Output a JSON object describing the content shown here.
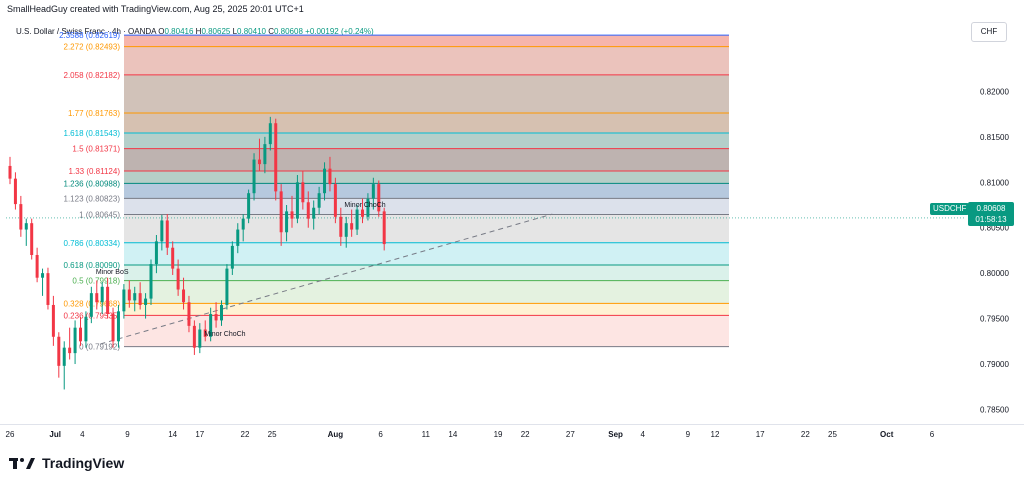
{
  "header": {
    "attribution": "SmallHeadGuy created with TradingView.com, Aug 25, 2025 20:01 UTC+1",
    "symbol_title": "U.S. Dollar / Swiss Franc · 4h · OANDA",
    "ohlc": {
      "o_label": "O",
      "o": "0.80416",
      "h_label": "H",
      "h": "0.80625",
      "l_label": "L",
      "l": "0.80410",
      "c_label": "C",
      "c": "0.80608",
      "change": "+0.00192 (+0.24%)"
    },
    "currency": "CHF"
  },
  "current_price": {
    "symbol": "USDCHF",
    "price": "0.80608",
    "countdown": "01:58:13",
    "value": 0.80608,
    "color": "#089981"
  },
  "branding": {
    "logo_text": "TradingView"
  },
  "chart_data": {
    "type": "candlestick",
    "ylim": [
      0.7834,
      0.8283
    ],
    "y_ticks": [
      0.82,
      0.815,
      0.81,
      0.805,
      0.8,
      0.795,
      0.79,
      0.785
    ],
    "y_tick_labels": [
      "0.82000",
      "0.81500",
      "0.81000",
      "0.80500",
      "0.80000",
      "0.79500",
      "0.79000",
      "0.78500"
    ],
    "x_range_days": [
      0,
      104
    ],
    "x_ticks": [
      {
        "label": "26",
        "day": 0
      },
      {
        "label": "Jul",
        "day": 5,
        "bold": true
      },
      {
        "label": "4",
        "day": 8
      },
      {
        "label": "9",
        "day": 13
      },
      {
        "label": "14",
        "day": 18
      },
      {
        "label": "17",
        "day": 21
      },
      {
        "label": "22",
        "day": 26
      },
      {
        "label": "25",
        "day": 29
      },
      {
        "label": "Aug",
        "day": 36,
        "bold": true
      },
      {
        "label": "6",
        "day": 41
      },
      {
        "label": "11",
        "day": 46
      },
      {
        "label": "14",
        "day": 49
      },
      {
        "label": "19",
        "day": 54
      },
      {
        "label": "22",
        "day": 57
      },
      {
        "label": "27",
        "day": 62
      },
      {
        "label": "Sep",
        "day": 67,
        "bold": true
      },
      {
        "label": "4",
        "day": 70
      },
      {
        "label": "9",
        "day": 75
      },
      {
        "label": "12",
        "day": 78
      },
      {
        "label": "17",
        "day": 83
      },
      {
        "label": "22",
        "day": 88
      },
      {
        "label": "25",
        "day": 91
      },
      {
        "label": "Oct",
        "day": 97,
        "bold": true
      },
      {
        "label": "6",
        "day": 102
      }
    ],
    "fib_levels": [
      {
        "label": "2.3588 (0.82619)",
        "price": 0.82619,
        "color": "#2962ff"
      },
      {
        "label": "2.272 (0.82493)",
        "price": 0.82493,
        "color": "#ff9800"
      },
      {
        "label": "2.058 (0.82182)",
        "price": 0.82182,
        "color": "#f23645"
      },
      {
        "label": "1.77 (0.81763)",
        "price": 0.81763,
        "color": "#ff9800"
      },
      {
        "label": "1.618 (0.81543)",
        "price": 0.81543,
        "color": "#00bcd4"
      },
      {
        "label": "1.5 (0.81371)",
        "price": 0.81371,
        "color": "#f23645"
      },
      {
        "label": "1.33 (0.81124)",
        "price": 0.81124,
        "color": "#f23645"
      },
      {
        "label": "1.236 (0.80988)",
        "price": 0.80988,
        "color": "#00897b"
      },
      {
        "label": "1.123 (0.80823)",
        "price": 0.80823,
        "color": "#787b86"
      },
      {
        "label": "1 (0.80645)",
        "price": 0.80645,
        "color": "#787b86"
      },
      {
        "label": "0.786 (0.80334)",
        "price": 0.80334,
        "color": "#00bcd4"
      },
      {
        "label": "0.618 (0.80090)",
        "price": 0.8009,
        "color": "#089981"
      },
      {
        "label": "0.5 (0.79918)",
        "price": 0.79918,
        "color": "#4caf50"
      },
      {
        "label": "0.328 (0.79668)",
        "price": 0.79668,
        "color": "#ff9800"
      },
      {
        "label": "0.236 (0.79535)",
        "price": 0.79535,
        "color": "#f23645"
      },
      {
        "label": "0 (0.79192)",
        "price": 0.79192,
        "color": "#787b86"
      }
    ],
    "fib_zone_colors": [
      "#c5cae9",
      "#f4a89e",
      "#e8b8b0",
      "#c9b7ad",
      "#cfb6a3",
      "#a7c7c1",
      "#b3a6a2",
      "#a9c6bd",
      "#a9bfd8",
      "#d6dce8",
      "#e0e0e0",
      "#c8eef2",
      "#d3efe6",
      "#dff0db",
      "#fff0cc",
      "#fde0de"
    ],
    "annotations": [
      {
        "text": "Minor ChoCh",
        "day": 37,
        "price": 0.8073
      },
      {
        "text": "Minor BoS",
        "day": 9.5,
        "price": 0.7999
      },
      {
        "text": "Minor ChoCh",
        "day": 21.5,
        "price": 0.7931
      }
    ],
    "trendline": {
      "from_day": 10,
      "from_price": 0.7922,
      "to_day": 60,
      "to_price": 0.8065
    },
    "candles": [
      {
        "day": 0.0,
        "o": 0.8118,
        "h": 0.8128,
        "l": 0.8098,
        "c": 0.8104
      },
      {
        "day": 0.6,
        "o": 0.8104,
        "h": 0.8111,
        "l": 0.807,
        "c": 0.8076
      },
      {
        "day": 1.2,
        "o": 0.8076,
        "h": 0.8085,
        "l": 0.804,
        "c": 0.8048
      },
      {
        "day": 1.8,
        "o": 0.8048,
        "h": 0.806,
        "l": 0.803,
        "c": 0.8055
      },
      {
        "day": 2.4,
        "o": 0.8055,
        "h": 0.806,
        "l": 0.8015,
        "c": 0.802
      },
      {
        "day": 3.0,
        "o": 0.802,
        "h": 0.8028,
        "l": 0.799,
        "c": 0.7995
      },
      {
        "day": 3.6,
        "o": 0.7995,
        "h": 0.8005,
        "l": 0.7975,
        "c": 0.8
      },
      {
        "day": 4.2,
        "o": 0.8,
        "h": 0.8006,
        "l": 0.796,
        "c": 0.7965
      },
      {
        "day": 4.8,
        "o": 0.7965,
        "h": 0.7975,
        "l": 0.792,
        "c": 0.793
      },
      {
        "day": 5.4,
        "o": 0.793,
        "h": 0.7935,
        "l": 0.7885,
        "c": 0.7898
      },
      {
        "day": 6.0,
        "o": 0.7898,
        "h": 0.7925,
        "l": 0.7872,
        "c": 0.7918
      },
      {
        "day": 6.6,
        "o": 0.7918,
        "h": 0.794,
        "l": 0.7905,
        "c": 0.7912
      },
      {
        "day": 7.2,
        "o": 0.7912,
        "h": 0.7948,
        "l": 0.79,
        "c": 0.794
      },
      {
        "day": 7.8,
        "o": 0.794,
        "h": 0.7952,
        "l": 0.792,
        "c": 0.7925
      },
      {
        "day": 8.4,
        "o": 0.7925,
        "h": 0.7958,
        "l": 0.7918,
        "c": 0.7952
      },
      {
        "day": 9.0,
        "o": 0.7952,
        "h": 0.7985,
        "l": 0.7945,
        "c": 0.7978
      },
      {
        "day": 9.6,
        "o": 0.7978,
        "h": 0.7992,
        "l": 0.796,
        "c": 0.7968
      },
      {
        "day": 10.2,
        "o": 0.7968,
        "h": 0.799,
        "l": 0.7955,
        "c": 0.7985
      },
      {
        "day": 10.8,
        "o": 0.7985,
        "h": 0.7995,
        "l": 0.795,
        "c": 0.7955
      },
      {
        "day": 11.4,
        "o": 0.7955,
        "h": 0.7962,
        "l": 0.7918,
        "c": 0.7925
      },
      {
        "day": 12.0,
        "o": 0.7925,
        "h": 0.7965,
        "l": 0.7918,
        "c": 0.7958
      },
      {
        "day": 12.6,
        "o": 0.7958,
        "h": 0.7988,
        "l": 0.795,
        "c": 0.7982
      },
      {
        "day": 13.2,
        "o": 0.7982,
        "h": 0.7992,
        "l": 0.7962,
        "c": 0.797
      },
      {
        "day": 13.8,
        "o": 0.797,
        "h": 0.7985,
        "l": 0.7958,
        "c": 0.7978
      },
      {
        "day": 14.4,
        "o": 0.7978,
        "h": 0.799,
        "l": 0.796,
        "c": 0.7965
      },
      {
        "day": 15.0,
        "o": 0.7965,
        "h": 0.7978,
        "l": 0.795,
        "c": 0.7972
      },
      {
        "day": 15.6,
        "o": 0.7972,
        "h": 0.8015,
        "l": 0.7965,
        "c": 0.801
      },
      {
        "day": 16.2,
        "o": 0.801,
        "h": 0.8042,
        "l": 0.8,
        "c": 0.8035
      },
      {
        "day": 16.8,
        "o": 0.8035,
        "h": 0.8064,
        "l": 0.8025,
        "c": 0.8058
      },
      {
        "day": 17.4,
        "o": 0.8058,
        "h": 0.8065,
        "l": 0.802,
        "c": 0.8028
      },
      {
        "day": 18.0,
        "o": 0.8028,
        "h": 0.8035,
        "l": 0.7998,
        "c": 0.8005
      },
      {
        "day": 18.6,
        "o": 0.8005,
        "h": 0.8015,
        "l": 0.7975,
        "c": 0.7982
      },
      {
        "day": 19.2,
        "o": 0.7982,
        "h": 0.7995,
        "l": 0.796,
        "c": 0.7968
      },
      {
        "day": 19.8,
        "o": 0.7968,
        "h": 0.7975,
        "l": 0.7935,
        "c": 0.7942
      },
      {
        "day": 20.4,
        "o": 0.7942,
        "h": 0.7948,
        "l": 0.791,
        "c": 0.7918
      },
      {
        "day": 21.0,
        "o": 0.7918,
        "h": 0.7945,
        "l": 0.7912,
        "c": 0.7938
      },
      {
        "day": 21.6,
        "o": 0.7938,
        "h": 0.7948,
        "l": 0.7925,
        "c": 0.793
      },
      {
        "day": 22.2,
        "o": 0.793,
        "h": 0.7962,
        "l": 0.7925,
        "c": 0.7955
      },
      {
        "day": 22.8,
        "o": 0.7955,
        "h": 0.7968,
        "l": 0.794,
        "c": 0.7948
      },
      {
        "day": 23.4,
        "o": 0.7948,
        "h": 0.797,
        "l": 0.7942,
        "c": 0.7965
      },
      {
        "day": 24.0,
        "o": 0.7965,
        "h": 0.801,
        "l": 0.796,
        "c": 0.8005
      },
      {
        "day": 24.6,
        "o": 0.8005,
        "h": 0.8035,
        "l": 0.7998,
        "c": 0.803
      },
      {
        "day": 25.2,
        "o": 0.803,
        "h": 0.8055,
        "l": 0.8022,
        "c": 0.8048
      },
      {
        "day": 25.8,
        "o": 0.8048,
        "h": 0.8065,
        "l": 0.8035,
        "c": 0.806
      },
      {
        "day": 26.4,
        "o": 0.806,
        "h": 0.8092,
        "l": 0.8055,
        "c": 0.8088
      },
      {
        "day": 27.0,
        "o": 0.8088,
        "h": 0.8132,
        "l": 0.808,
        "c": 0.8125
      },
      {
        "day": 27.6,
        "o": 0.8125,
        "h": 0.8148,
        "l": 0.8112,
        "c": 0.812
      },
      {
        "day": 28.2,
        "o": 0.812,
        "h": 0.815,
        "l": 0.811,
        "c": 0.8142
      },
      {
        "day": 28.8,
        "o": 0.8142,
        "h": 0.8172,
        "l": 0.8135,
        "c": 0.8165
      },
      {
        "day": 29.4,
        "o": 0.8165,
        "h": 0.817,
        "l": 0.808,
        "c": 0.809
      },
      {
        "day": 30.0,
        "o": 0.809,
        "h": 0.8098,
        "l": 0.803,
        "c": 0.8045
      },
      {
        "day": 30.6,
        "o": 0.8045,
        "h": 0.8075,
        "l": 0.8035,
        "c": 0.8068
      },
      {
        "day": 31.2,
        "o": 0.8068,
        "h": 0.8085,
        "l": 0.805,
        "c": 0.806
      },
      {
        "day": 31.8,
        "o": 0.806,
        "h": 0.8108,
        "l": 0.8055,
        "c": 0.81
      },
      {
        "day": 32.4,
        "o": 0.81,
        "h": 0.8112,
        "l": 0.807,
        "c": 0.8078
      },
      {
        "day": 33.0,
        "o": 0.8078,
        "h": 0.809,
        "l": 0.805,
        "c": 0.806
      },
      {
        "day": 33.6,
        "o": 0.806,
        "h": 0.808,
        "l": 0.8048,
        "c": 0.8072
      },
      {
        "day": 34.2,
        "o": 0.8072,
        "h": 0.8095,
        "l": 0.8065,
        "c": 0.8088
      },
      {
        "day": 34.8,
        "o": 0.8088,
        "h": 0.8122,
        "l": 0.808,
        "c": 0.8115
      },
      {
        "day": 35.4,
        "o": 0.8115,
        "h": 0.8128,
        "l": 0.809,
        "c": 0.8098
      },
      {
        "day": 36.0,
        "o": 0.8098,
        "h": 0.8105,
        "l": 0.8055,
        "c": 0.8062
      },
      {
        "day": 36.6,
        "o": 0.8062,
        "h": 0.8072,
        "l": 0.803,
        "c": 0.804
      },
      {
        "day": 37.2,
        "o": 0.804,
        "h": 0.8062,
        "l": 0.8028,
        "c": 0.8055
      },
      {
        "day": 37.8,
        "o": 0.8055,
        "h": 0.807,
        "l": 0.804,
        "c": 0.8048
      },
      {
        "day": 38.4,
        "o": 0.8048,
        "h": 0.8075,
        "l": 0.8042,
        "c": 0.807
      },
      {
        "day": 39.0,
        "o": 0.807,
        "h": 0.8082,
        "l": 0.8055,
        "c": 0.8062
      },
      {
        "day": 39.6,
        "o": 0.8062,
        "h": 0.8088,
        "l": 0.8058,
        "c": 0.8082
      },
      {
        "day": 40.2,
        "o": 0.8082,
        "h": 0.8105,
        "l": 0.807,
        "c": 0.8098
      },
      {
        "day": 40.8,
        "o": 0.8098,
        "h": 0.8102,
        "l": 0.8062,
        "c": 0.8068
      },
      {
        "day": 41.4,
        "o": 0.8068,
        "h": 0.8072,
        "l": 0.8025,
        "c": 0.8032
      }
    ]
  }
}
